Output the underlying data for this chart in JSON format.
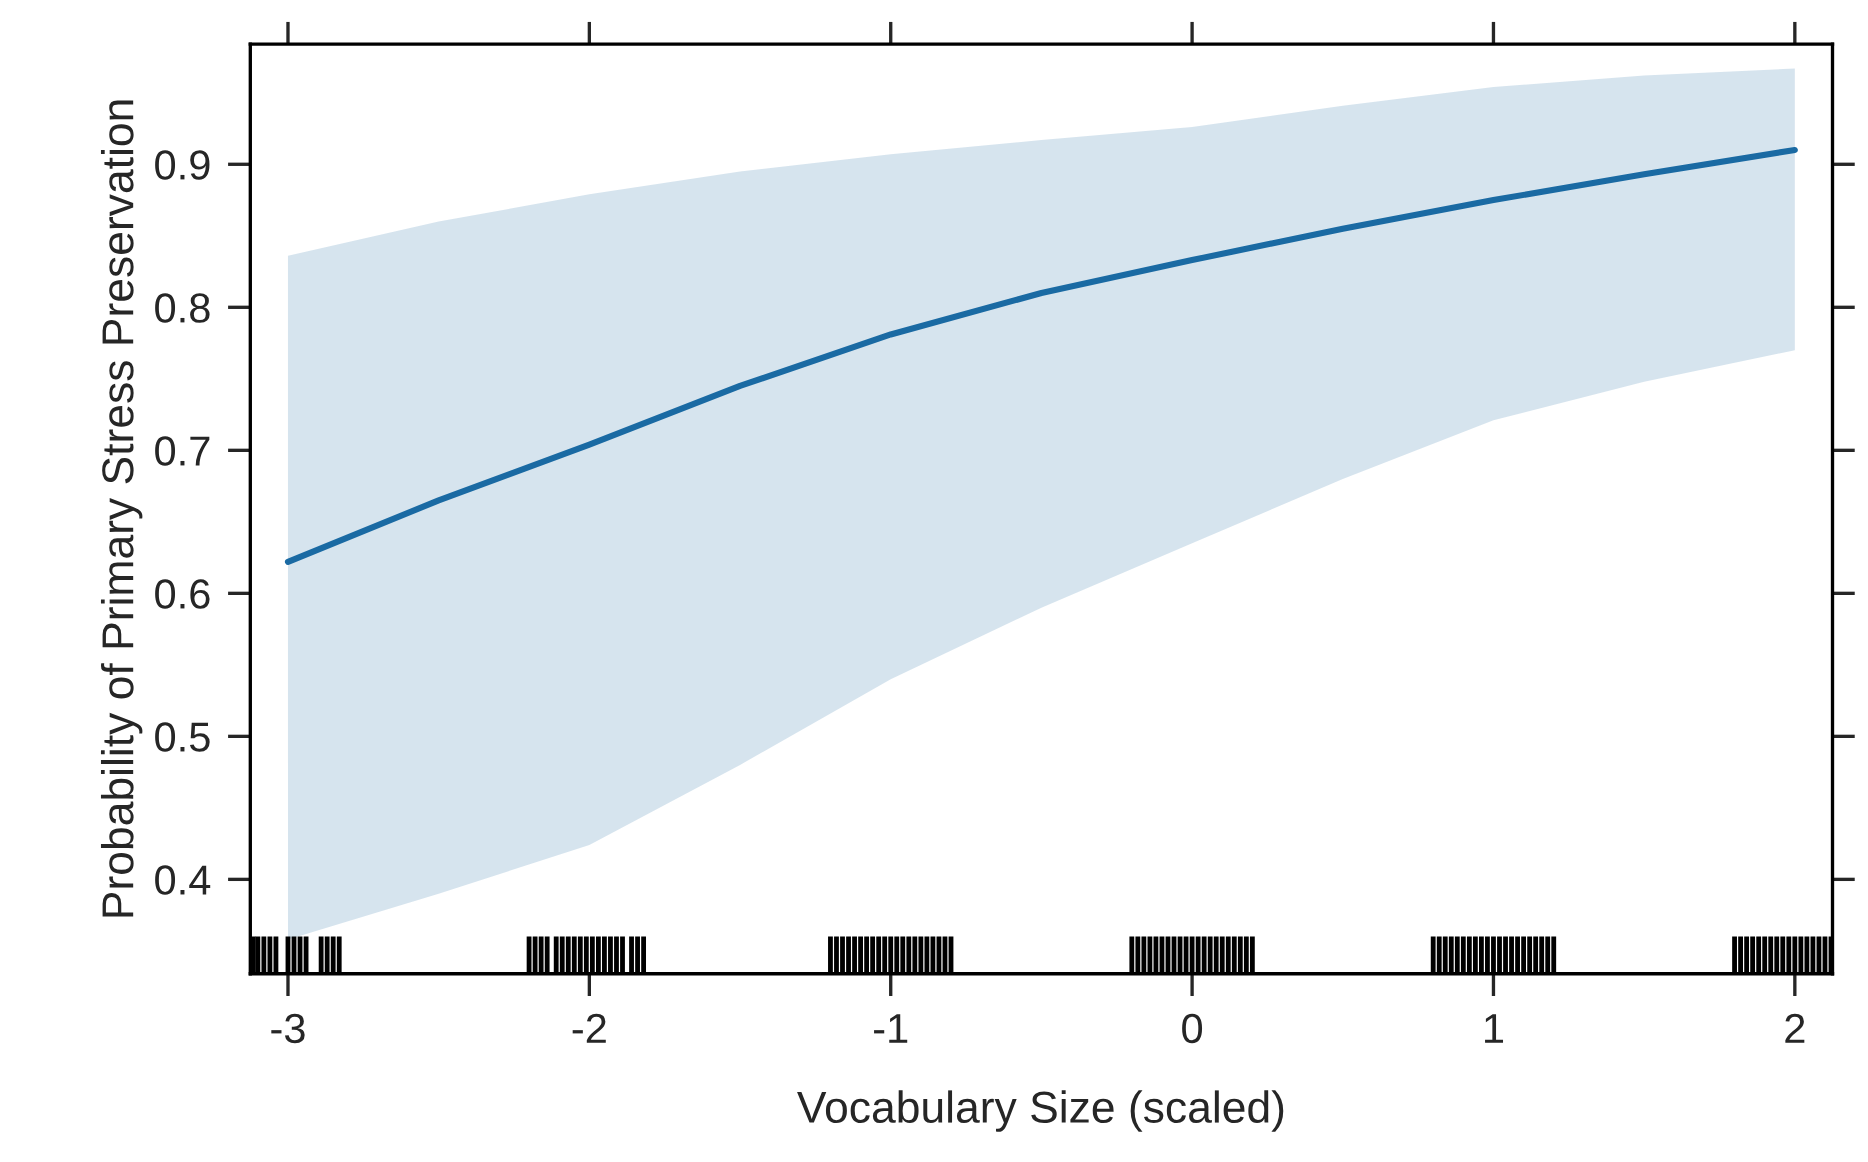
{
  "chart_data": {
    "type": "line",
    "xlabel": "Vocabulary Size (scaled)",
    "ylabel": "Probability of Primary Stress Preservation",
    "xlim": [
      -3.125,
      2.125
    ],
    "ylim": [
      0.334,
      0.984
    ],
    "xticks": [
      -3,
      -2,
      -1,
      0,
      1,
      2
    ],
    "yticks": [
      0.4,
      0.5,
      0.6,
      0.7,
      0.8,
      0.9
    ],
    "grid": false,
    "legend": false,
    "marker": "none",
    "line_style": "solid",
    "series": [
      {
        "color": "#1a6aa3",
        "x": [
          -3,
          -2.5,
          -2,
          -1.5,
          -1,
          -0.5,
          0,
          0.5,
          1,
          1.5,
          2
        ],
        "values": [
          0.622,
          0.665,
          0.704,
          0.745,
          0.781,
          0.81,
          0.833,
          0.855,
          0.875,
          0.893,
          0.91
        ],
        "lower": [
          0.358,
          0.39,
          0.424,
          0.48,
          0.54,
          0.59,
          0.635,
          0.68,
          0.721,
          0.748,
          0.77
        ],
        "upper": [
          0.836,
          0.86,
          0.879,
          0.895,
          0.907,
          0.917,
          0.926,
          0.941,
          0.954,
          0.962,
          0.967
        ]
      },
      {
        "type": "bar",
        "color": "#000000",
        "base": [
          0.334,
          0.334,
          0.334,
          0.334,
          0.334,
          0.334,
          0.334,
          0.334,
          0.334,
          0.334,
          0.334,
          0.334,
          0.334,
          0.334,
          0.334,
          0.334,
          0.334,
          0.334,
          0.334,
          0.334,
          0.334,
          0.334,
          0.334,
          0.334,
          0.334,
          0.334,
          0.334,
          0.334,
          0.334,
          0.334,
          0.334,
          0.334,
          0.334,
          0.334,
          0.334,
          0.334,
          0.334,
          0.334,
          0.334,
          0.334,
          0.334,
          0.334,
          0.334,
          0.334,
          0.334,
          0.334,
          0.334,
          0.334,
          0.334,
          0.334,
          0.334,
          0.334,
          0.334,
          0.334,
          0.334,
          0.334,
          0.334,
          0.334,
          0.334,
          0.334,
          0.334,
          0.334,
          0.334,
          0.334,
          0.334,
          0.334,
          0.334,
          0.334,
          0.334,
          0.334,
          0.334,
          0.334,
          0.334,
          0.334,
          0.334,
          0.334,
          0.334,
          0.334,
          0.334,
          0.334,
          0.334,
          0.334,
          0.334,
          0.334,
          0.334,
          0.334,
          0.334,
          0.334,
          0.334,
          0.334,
          0.334,
          0.334,
          0.334,
          0.334,
          0.334,
          0.334,
          0.334,
          0.334,
          0.334,
          0.334,
          0.334,
          0.334,
          0.334,
          0.334,
          0.334,
          0.334,
          0.334,
          0.334,
          0.334,
          0.334,
          0.334,
          0.334
        ],
        "x": [
          -3.115,
          -3.1,
          -3.08,
          -3.06,
          -3.04,
          -3.0,
          -2.98,
          -2.96,
          -2.94,
          -2.89,
          -2.87,
          -2.85,
          -2.83,
          -2.2,
          -2.18,
          -2.16,
          -2.14,
          -2.11,
          -2.09,
          -2.07,
          -2.05,
          -2.03,
          -2.01,
          -1.99,
          -1.97,
          -1.95,
          -1.93,
          -1.91,
          -1.89,
          -1.86,
          -1.84,
          -1.82,
          -1.2,
          -1.18,
          -1.16,
          -1.14,
          -1.12,
          -1.1,
          -1.08,
          -1.06,
          -1.04,
          -1.02,
          -1.0,
          -0.98,
          -0.96,
          -0.94,
          -0.92,
          -0.9,
          -0.88,
          -0.86,
          -0.84,
          -0.82,
          -0.8,
          -0.2,
          -0.18,
          -0.16,
          -0.14,
          -0.12,
          -0.1,
          -0.08,
          -0.06,
          -0.04,
          -0.02,
          0.0,
          0.02,
          0.04,
          0.06,
          0.08,
          0.1,
          0.12,
          0.14,
          0.16,
          0.18,
          0.2,
          0.8,
          0.82,
          0.84,
          0.86,
          0.88,
          0.9,
          0.92,
          0.94,
          0.96,
          0.98,
          1.0,
          1.02,
          1.04,
          1.06,
          1.08,
          1.1,
          1.12,
          1.14,
          1.16,
          1.18,
          1.2,
          1.8,
          1.82,
          1.84,
          1.86,
          1.88,
          1.9,
          1.92,
          1.94,
          1.96,
          1.98,
          2.0,
          2.02,
          2.04,
          2.06,
          2.08,
          2.1,
          2.12
        ],
        "values": [
          0.026,
          0.026,
          0.026,
          0.026,
          0.026,
          0.026,
          0.026,
          0.026,
          0.026,
          0.026,
          0.026,
          0.026,
          0.026,
          0.026,
          0.026,
          0.026,
          0.026,
          0.026,
          0.026,
          0.026,
          0.026,
          0.026,
          0.026,
          0.026,
          0.026,
          0.026,
          0.026,
          0.026,
          0.026,
          0.026,
          0.026,
          0.026,
          0.026,
          0.026,
          0.026,
          0.026,
          0.026,
          0.026,
          0.026,
          0.026,
          0.026,
          0.026,
          0.026,
          0.026,
          0.026,
          0.026,
          0.026,
          0.026,
          0.026,
          0.026,
          0.026,
          0.026,
          0.026,
          0.026,
          0.026,
          0.026,
          0.026,
          0.026,
          0.026,
          0.026,
          0.026,
          0.026,
          0.026,
          0.026,
          0.026,
          0.026,
          0.026,
          0.026,
          0.026,
          0.026,
          0.026,
          0.026,
          0.026,
          0.026,
          0.026,
          0.026,
          0.026,
          0.026,
          0.026,
          0.026,
          0.026,
          0.026,
          0.026,
          0.026,
          0.026,
          0.026,
          0.026,
          0.026,
          0.026,
          0.026,
          0.026,
          0.026,
          0.026,
          0.026,
          0.026,
          0.026,
          0.026,
          0.026,
          0.026,
          0.026,
          0.026,
          0.026,
          0.026,
          0.026,
          0.026,
          0.026,
          0.026,
          0.026,
          0.026,
          0.026,
          0.026,
          0.026
        ]
      }
    ]
  }
}
